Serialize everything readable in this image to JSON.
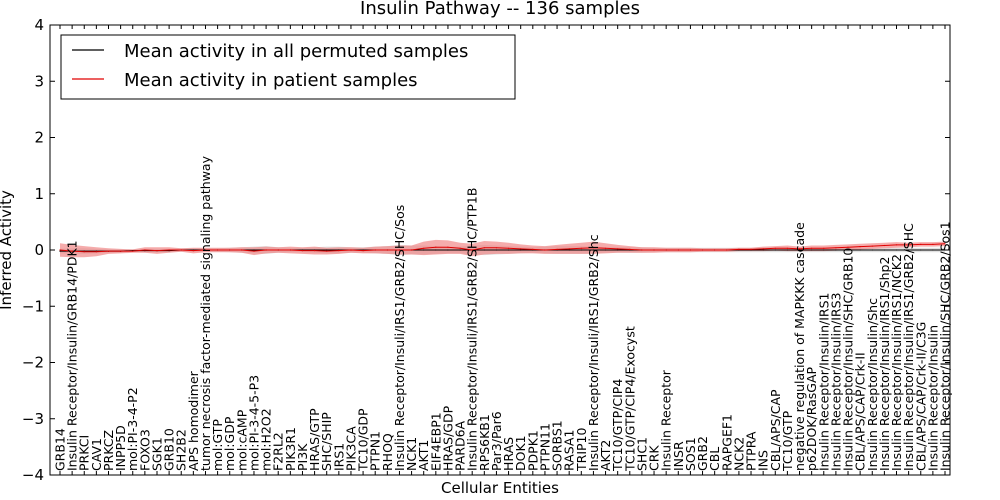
{
  "chart_data": {
    "type": "line",
    "title": "Insulin Pathway -- 136 samples",
    "xlabel": "Cellular Entities",
    "ylabel": "Inferred Activity",
    "ylim": [
      -4,
      4
    ],
    "yticks": [
      -4,
      -3,
      -2,
      -1,
      0,
      1,
      2,
      3,
      4
    ],
    "ytick_labels": [
      "−4",
      "−3",
      "−2",
      "−1",
      "0",
      "1",
      "2",
      "3",
      "4"
    ],
    "grid": false,
    "legend_position": "top-left",
    "categories": [
      "GRB14",
      "Insulin Receptor/Insulin/GRB14/PDK1",
      "PRKCI",
      "CAV1",
      "PRKCZ",
      "INPP5D",
      "mol:PI-3-4-P2",
      "FOXO3",
      "SGK1",
      "GRB10",
      "SH2B2",
      "APS homodimer",
      "tumor necrosis factor-mediated signaling pathway",
      "mol:GTP",
      "mol:GDP",
      "mol:cAMP",
      "mol:PI-3-4-5-P3",
      "mol:H2O2",
      "F2RL2",
      "PIK3R1",
      "PI3K",
      "HRAS/GTP",
      "SHC/SHIP",
      "IRS1",
      "PIK3CA",
      "TC10/GDP",
      "PTPN1",
      "RHOQ",
      "Insulin Receptor/Insuli/IRS1/GRB2/SHC/Sos",
      "NCK1",
      "AKT1",
      "EIF4EBP1",
      "HRAS/GDP",
      "PARD6A",
      "Insulin Receptor/Insuli/IRS1/GRB2/SHC/PTP1B",
      "RPS6KB1",
      "Par3/Par6",
      "HRAS",
      "DOK1",
      "PDPK1",
      "PTPN11",
      "SORBS1",
      "RASA1",
      "TRIP10",
      "Insulin Receptor/Insuli/IRS1/GRB2/Shc",
      "AKT2",
      "TC10/GTP/CIP4",
      "TC10/GTP/CIP4/Exocyst",
      "SHC1",
      "CRK",
      "Insulin Receptor",
      "INSR",
      "SOS1",
      "GRB2",
      "CBL",
      "RAPGEF1",
      "NCK2",
      "PTPRA",
      "INS",
      "CBL/APS/CAP",
      "TC10/GTP",
      "negative regulation of MAPKKK cascade",
      "p62DOK/RasGAP",
      "Insulin Receptor/Insulin/IRS1",
      "Insulin Receptor/Insulin/IRS3",
      "Insulin Receptor/Insulin/SHC/GRB10",
      "CBL/APS/CAP/Crk-II",
      "Insulin Receptor/Insulin/Shc",
      "Insulin Receptor/Insulin/IRS1/Shp2",
      "Insulin Receptor/Insulin/IRS1/NCK2",
      "Insulin Receptor/Insulin/IRS1/GRB2/SHC",
      "CBL/APS/CAP/Crk-II/C3G",
      "Insulin Receptor/Insulin",
      "Insulin Receptor/Insulin/SHC/GRB2/Sos1"
    ],
    "series": [
      {
        "name": "Mean activity in all permuted samples",
        "color": "#000000",
        "band_color": "#c8c8c8",
        "values": [
          -0.02,
          -0.02,
          -0.02,
          -0.02,
          -0.02,
          -0.02,
          -0.01,
          -0.01,
          -0.01,
          -0.01,
          0.0,
          0.0,
          0.0,
          0.0,
          0.0,
          0.0,
          0.0,
          0.0,
          0.0,
          0.0,
          0.0,
          0.0,
          0.0,
          0.0,
          0.0,
          0.0,
          0.0,
          0.0,
          0.0,
          0.0,
          0.0,
          0.0,
          0.0,
          0.0,
          0.0,
          0.0,
          0.0,
          0.0,
          0.0,
          0.0,
          0.0,
          0.0,
          0.0,
          0.0,
          0.0,
          0.0,
          0.0,
          0.0,
          0.0,
          0.0,
          0.0,
          0.0,
          0.0,
          0.0,
          0.0,
          0.0,
          0.0,
          0.0,
          0.0,
          0.0,
          0.0,
          0.0,
          0.0,
          0.0,
          0.0,
          0.0,
          0.0,
          0.0,
          0.0,
          0.0,
          0.0,
          0.0,
          0.0,
          0.0
        ],
        "spread": [
          0.04,
          0.05,
          0.05,
          0.04,
          0.03,
          0.03,
          0.02,
          0.03,
          0.03,
          0.03,
          0.03,
          0.03,
          0.03,
          0.03,
          0.04,
          0.05,
          0.06,
          0.07,
          0.05,
          0.04,
          0.04,
          0.05,
          0.06,
          0.06,
          0.05,
          0.05,
          0.06,
          0.07,
          0.09,
          0.08,
          0.08,
          0.07,
          0.06,
          0.06,
          0.08,
          0.09,
          0.08,
          0.07,
          0.06,
          0.05,
          0.06,
          0.07,
          0.07,
          0.07,
          0.06,
          0.05,
          0.05,
          0.05,
          0.05,
          0.04,
          0.04,
          0.04,
          0.04,
          0.04,
          0.04,
          0.04,
          0.04,
          0.04,
          0.04,
          0.04,
          0.04,
          0.04,
          0.04,
          0.04,
          0.04,
          0.04,
          0.04,
          0.04,
          0.04,
          0.04,
          0.04,
          0.04,
          0.04,
          0.04
        ]
      },
      {
        "name": "Mean activity in patient samples",
        "color": "#e00000",
        "band_color": "#f08080",
        "values": [
          0.0,
          -0.02,
          -0.03,
          -0.03,
          -0.02,
          -0.02,
          -0.02,
          0.0,
          -0.01,
          0.0,
          0.0,
          -0.01,
          0.0,
          0.0,
          0.0,
          0.0,
          -0.02,
          0.0,
          0.0,
          0.0,
          -0.01,
          -0.01,
          -0.02,
          -0.01,
          0.0,
          -0.01,
          0.0,
          0.0,
          0.0,
          0.0,
          0.03,
          0.05,
          0.05,
          0.03,
          0.0,
          0.04,
          0.04,
          0.03,
          0.02,
          0.01,
          0.0,
          0.01,
          0.02,
          0.03,
          0.04,
          0.03,
          0.02,
          0.01,
          0.0,
          0.0,
          0.0,
          0.0,
          0.0,
          0.0,
          0.0,
          0.0,
          0.01,
          0.01,
          0.02,
          0.03,
          0.03,
          0.02,
          0.03,
          0.03,
          0.04,
          0.05,
          0.06,
          0.07,
          0.08,
          0.09,
          0.09,
          0.1,
          0.1,
          0.11
        ],
        "spread": [
          0.12,
          0.11,
          0.1,
          0.08,
          0.05,
          0.04,
          0.03,
          0.05,
          0.06,
          0.05,
          0.03,
          0.05,
          0.04,
          0.04,
          0.04,
          0.05,
          0.07,
          0.06,
          0.05,
          0.06,
          0.06,
          0.07,
          0.06,
          0.06,
          0.05,
          0.05,
          0.06,
          0.07,
          0.08,
          0.08,
          0.12,
          0.13,
          0.12,
          0.1,
          0.11,
          0.12,
          0.11,
          0.1,
          0.08,
          0.07,
          0.07,
          0.08,
          0.09,
          0.1,
          0.11,
          0.09,
          0.07,
          0.06,
          0.05,
          0.05,
          0.04,
          0.04,
          0.04,
          0.03,
          0.03,
          0.03,
          0.03,
          0.03,
          0.04,
          0.04,
          0.05,
          0.04,
          0.05,
          0.05,
          0.05,
          0.05,
          0.05,
          0.05,
          0.05,
          0.05,
          0.04,
          0.04,
          0.04,
          0.04
        ]
      }
    ]
  }
}
